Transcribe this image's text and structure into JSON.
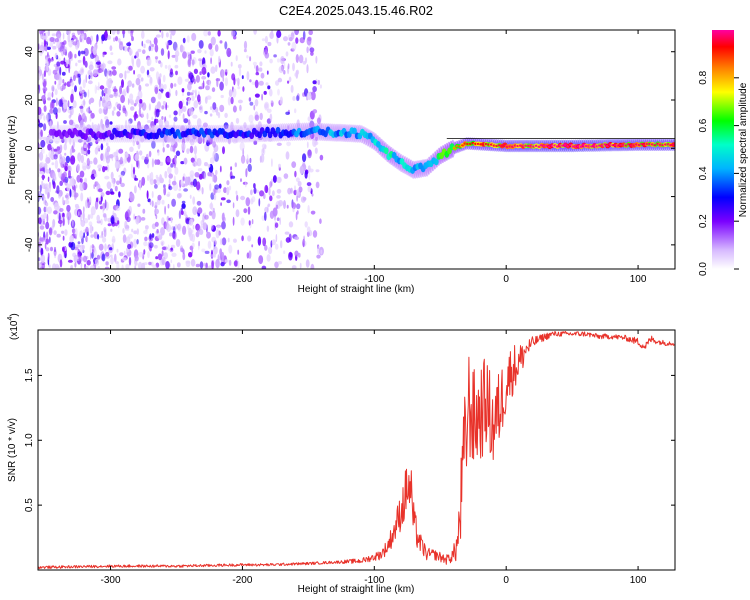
{
  "title": "C2E4.2025.043.15.46.R02",
  "colors": {
    "axis": "#000000",
    "snr_line": "#e8322a",
    "reference_line": "#000000",
    "colormap": [
      "#ffffff",
      "#d6b8ff",
      "#7a00ff",
      "#0000ff",
      "#00b4ff",
      "#00ffc8",
      "#00ff00",
      "#ffff00",
      "#ff8000",
      "#ff0000",
      "#ff00a0"
    ]
  },
  "chart_data": [
    {
      "id": "spectrogram",
      "type": "heatmap",
      "title": "C2E4.2025.043.15.46.R02",
      "xlabel": "Height of straight line (km)",
      "ylabel": "Frequency (Hz)",
      "xlim": [
        -355,
        128
      ],
      "ylim": [
        -50,
        49
      ],
      "xticks": [
        -300,
        -200,
        -100,
        0,
        100
      ],
      "yticks": [
        -40,
        -20,
        0,
        20,
        40
      ],
      "xtick_labels": [
        "-300",
        "-200",
        "-100",
        "0",
        "100"
      ],
      "ytick_labels": [
        "-40",
        "-20",
        "0",
        "20",
        "40"
      ],
      "colorbar": {
        "label": "Normalized spectral amplitude",
        "range": [
          0,
          1
        ],
        "ticks": [
          0.0,
          0.2,
          0.4,
          0.6,
          0.8
        ],
        "tick_labels": [
          "0.0",
          "0.2",
          "0.4",
          "0.6",
          "0.8"
        ]
      },
      "reference_line_hz": 4,
      "ridge": {
        "x": [
          -340,
          -300,
          -250,
          -200,
          -150,
          -110,
          -100,
          -90,
          -80,
          -70,
          -60,
          -50,
          -40,
          -30,
          0,
          50,
          100,
          128
        ],
        "freq": [
          6,
          6,
          6,
          6,
          7,
          6,
          3,
          -2,
          -6,
          -9,
          -8,
          -3,
          0,
          2,
          1,
          1,
          1.5,
          1.5
        ],
        "amplitude": [
          0.2,
          0.25,
          0.35,
          0.3,
          0.4,
          0.45,
          0.5,
          0.55,
          0.5,
          0.5,
          0.5,
          0.6,
          0.7,
          0.8,
          0.85,
          0.9,
          0.85,
          0.85
        ]
      }
    },
    {
      "id": "snr",
      "type": "line",
      "xlabel": "Height of straight line (km)",
      "ylabel": "SNR (10 * v/v)",
      "y_multiplier_label": "(x10",
      "y_multiplier_exp": "4",
      "xlim": [
        -355,
        128
      ],
      "ylim": [
        0,
        1.85
      ],
      "xticks": [
        -300,
        -200,
        -100,
        0,
        100
      ],
      "yticks": [
        0.5,
        1.0,
        1.5
      ],
      "xtick_labels": [
        "-300",
        "-200",
        "-100",
        "0",
        "100"
      ],
      "ytick_labels": [
        "0.5",
        "1.0",
        "1.5"
      ],
      "series": [
        {
          "name": "SNR",
          "x": [
            -355,
            -300,
            -250,
            -200,
            -180,
            -150,
            -130,
            -110,
            -100,
            -95,
            -90,
            -85,
            -80,
            -77,
            -75,
            -72,
            -70,
            -65,
            -60,
            -55,
            -50,
            -45,
            -40,
            -37,
            -35,
            -33,
            -30,
            -28,
            -25,
            -20,
            -15,
            -10,
            -5,
            0,
            5,
            10,
            15,
            20,
            25,
            30,
            35,
            40,
            50,
            60,
            70,
            80,
            90,
            100,
            105,
            110,
            115,
            120,
            128
          ],
          "y": [
            0.02,
            0.03,
            0.03,
            0.04,
            0.04,
            0.05,
            0.06,
            0.07,
            0.1,
            0.12,
            0.18,
            0.3,
            0.45,
            0.55,
            0.65,
            0.6,
            0.35,
            0.2,
            0.12,
            0.12,
            0.1,
            0.08,
            0.12,
            0.2,
            0.4,
            0.75,
            1.1,
            1.3,
            1.15,
            1.2,
            1.3,
            1.1,
            1.25,
            1.45,
            1.55,
            1.6,
            1.7,
            1.75,
            1.78,
            1.8,
            1.82,
            1.82,
            1.82,
            1.82,
            1.8,
            1.8,
            1.79,
            1.76,
            1.72,
            1.78,
            1.76,
            1.75,
            1.75
          ],
          "noise_amplitude": [
            0.01,
            0.01,
            0.01,
            0.01,
            0.01,
            0.01,
            0.01,
            0.02,
            0.03,
            0.04,
            0.06,
            0.1,
            0.15,
            0.2,
            0.2,
            0.2,
            0.15,
            0.08,
            0.05,
            0.04,
            0.04,
            0.04,
            0.06,
            0.15,
            0.3,
            0.4,
            0.45,
            0.45,
            0.4,
            0.4,
            0.35,
            0.35,
            0.3,
            0.25,
            0.2,
            0.15,
            0.08,
            0.05,
            0.03,
            0.03,
            0.02,
            0.02,
            0.02,
            0.02,
            0.02,
            0.02,
            0.02,
            0.03,
            0.03,
            0.03,
            0.02,
            0.02,
            0.02
          ]
        }
      ]
    }
  ]
}
